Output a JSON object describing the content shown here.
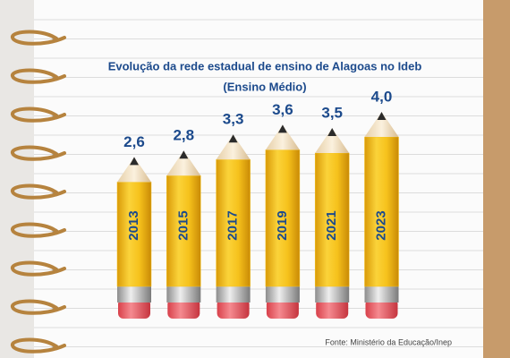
{
  "chart_data": {
    "type": "bar",
    "title": "Evolução da rede estadual de ensino de Alagoas no Ideb",
    "subtitle": "(Ensino Médio)",
    "categories": [
      "2013",
      "2015",
      "2017",
      "2019",
      "2021",
      "2023"
    ],
    "values": [
      2.6,
      2.8,
      3.3,
      3.6,
      3.5,
      4.0
    ],
    "value_labels": [
      "2,6",
      "2,8",
      "3,3",
      "3,6",
      "3,5",
      "4,0"
    ],
    "color": "#f6c21c",
    "source": "Fonte: Ministério da Educação/Inep"
  }
}
